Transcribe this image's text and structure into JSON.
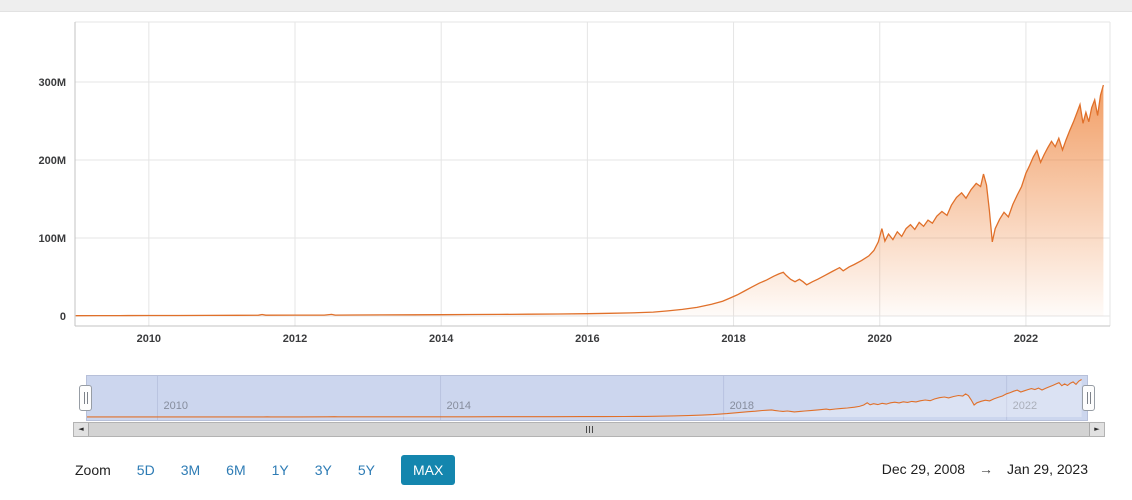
{
  "chart_data": {
    "type": "area",
    "title": "",
    "xlabel": "",
    "ylabel": "",
    "unit": "M",
    "grid": true,
    "xlim": [
      2008.99,
      2023.15
    ],
    "ylim": [
      0,
      377
    ],
    "yticks": [
      {
        "v": 0,
        "label": "0"
      },
      {
        "v": 100,
        "label": "100M"
      },
      {
        "v": 200,
        "label": "200M"
      },
      {
        "v": 300,
        "label": "300M"
      }
    ],
    "xticks": [
      {
        "v": 2010,
        "label": "2010"
      },
      {
        "v": 2012,
        "label": "2012"
      },
      {
        "v": 2014,
        "label": "2014"
      },
      {
        "v": 2016,
        "label": "2016"
      },
      {
        "v": 2018,
        "label": "2018"
      },
      {
        "v": 2020,
        "label": "2020"
      },
      {
        "v": 2022,
        "label": "2022"
      }
    ],
    "nav_ticks": [
      2010,
      2014,
      2018,
      2022
    ],
    "colors": {
      "line": "#e0702a",
      "fill": "#ed7d31"
    },
    "points": [
      [
        2009.0,
        0.4
      ],
      [
        2009.3,
        0.5
      ],
      [
        2009.6,
        0.5
      ],
      [
        2010.0,
        0.6
      ],
      [
        2010.4,
        0.7
      ],
      [
        2010.8,
        0.8
      ],
      [
        2011.2,
        0.9
      ],
      [
        2011.5,
        1.0
      ],
      [
        2011.55,
        1.9
      ],
      [
        2011.6,
        1.0
      ],
      [
        2012.0,
        1.1
      ],
      [
        2012.4,
        1.2
      ],
      [
        2012.5,
        2.1
      ],
      [
        2012.55,
        1.2
      ],
      [
        2012.8,
        1.3
      ],
      [
        2013.2,
        1.4
      ],
      [
        2013.6,
        1.5
      ],
      [
        2014.0,
        1.7
      ],
      [
        2014.4,
        1.9
      ],
      [
        2014.8,
        2.1
      ],
      [
        2015.2,
        2.3
      ],
      [
        2015.6,
        2.6
      ],
      [
        2016.0,
        3.0
      ],
      [
        2016.3,
        3.4
      ],
      [
        2016.6,
        4.0
      ],
      [
        2016.9,
        5.0
      ],
      [
        2017.1,
        6.5
      ],
      [
        2017.3,
        8.5
      ],
      [
        2017.5,
        11
      ],
      [
        2017.7,
        15
      ],
      [
        2017.85,
        19
      ],
      [
        2017.95,
        23
      ],
      [
        2018.05,
        27
      ],
      [
        2018.15,
        32
      ],
      [
        2018.25,
        37
      ],
      [
        2018.35,
        42
      ],
      [
        2018.45,
        46
      ],
      [
        2018.55,
        51
      ],
      [
        2018.62,
        54
      ],
      [
        2018.68,
        56
      ],
      [
        2018.72,
        52
      ],
      [
        2018.78,
        47
      ],
      [
        2018.84,
        44
      ],
      [
        2018.9,
        47
      ],
      [
        2018.95,
        44
      ],
      [
        2019.0,
        40
      ],
      [
        2019.08,
        44
      ],
      [
        2019.15,
        47
      ],
      [
        2019.25,
        52
      ],
      [
        2019.35,
        57
      ],
      [
        2019.45,
        62
      ],
      [
        2019.5,
        58
      ],
      [
        2019.58,
        63
      ],
      [
        2019.65,
        66
      ],
      [
        2019.75,
        71
      ],
      [
        2019.85,
        77
      ],
      [
        2019.92,
        84
      ],
      [
        2019.98,
        95
      ],
      [
        2020.03,
        112
      ],
      [
        2020.07,
        96
      ],
      [
        2020.12,
        105
      ],
      [
        2020.18,
        98
      ],
      [
        2020.24,
        108
      ],
      [
        2020.3,
        102
      ],
      [
        2020.36,
        112
      ],
      [
        2020.42,
        117
      ],
      [
        2020.48,
        111
      ],
      [
        2020.54,
        120
      ],
      [
        2020.6,
        115
      ],
      [
        2020.66,
        123
      ],
      [
        2020.72,
        119
      ],
      [
        2020.78,
        128
      ],
      [
        2020.85,
        134
      ],
      [
        2020.92,
        129
      ],
      [
        2020.98,
        142
      ],
      [
        2021.05,
        152
      ],
      [
        2021.12,
        158
      ],
      [
        2021.18,
        151
      ],
      [
        2021.25,
        162
      ],
      [
        2021.32,
        170
      ],
      [
        2021.38,
        166
      ],
      [
        2021.42,
        182
      ],
      [
        2021.46,
        168
      ],
      [
        2021.5,
        135
      ],
      [
        2021.54,
        95
      ],
      [
        2021.58,
        112
      ],
      [
        2021.64,
        124
      ],
      [
        2021.7,
        133
      ],
      [
        2021.76,
        127
      ],
      [
        2021.82,
        143
      ],
      [
        2021.88,
        155
      ],
      [
        2021.94,
        166
      ],
      [
        2022.0,
        183
      ],
      [
        2022.05,
        193
      ],
      [
        2022.1,
        204
      ],
      [
        2022.15,
        212
      ],
      [
        2022.2,
        197
      ],
      [
        2022.25,
        207
      ],
      [
        2022.3,
        216
      ],
      [
        2022.35,
        224
      ],
      [
        2022.4,
        217
      ],
      [
        2022.45,
        228
      ],
      [
        2022.5,
        213
      ],
      [
        2022.55,
        226
      ],
      [
        2022.6,
        238
      ],
      [
        2022.65,
        249
      ],
      [
        2022.7,
        261
      ],
      [
        2022.74,
        271
      ],
      [
        2022.78,
        247
      ],
      [
        2022.82,
        261
      ],
      [
        2022.86,
        249
      ],
      [
        2022.9,
        267
      ],
      [
        2022.94,
        277
      ],
      [
        2022.98,
        257
      ],
      [
        2023.02,
        283
      ],
      [
        2023.06,
        296
      ]
    ]
  },
  "navigator": {
    "labels": [
      "2010",
      "2014",
      "2018",
      "2022"
    ]
  },
  "scrollbar": {
    "left_arrow": "◄",
    "right_arrow": "►"
  },
  "zoom": {
    "label": "Zoom",
    "ranges": [
      "5D",
      "3M",
      "6M",
      "1Y",
      "3Y",
      "5Y"
    ],
    "active": "MAX"
  },
  "date_range": {
    "from": "Dec 29, 2008",
    "arrow": "→",
    "to": "Jan 29, 2023"
  },
  "colors": {
    "link": "#2e7cb5",
    "active_bg": "#1486ae",
    "nav_bg": "#ccd6ee",
    "nav_grid": "#a9b5d6",
    "grid": "#e5e5e5",
    "axis": "#c3c3c3"
  }
}
